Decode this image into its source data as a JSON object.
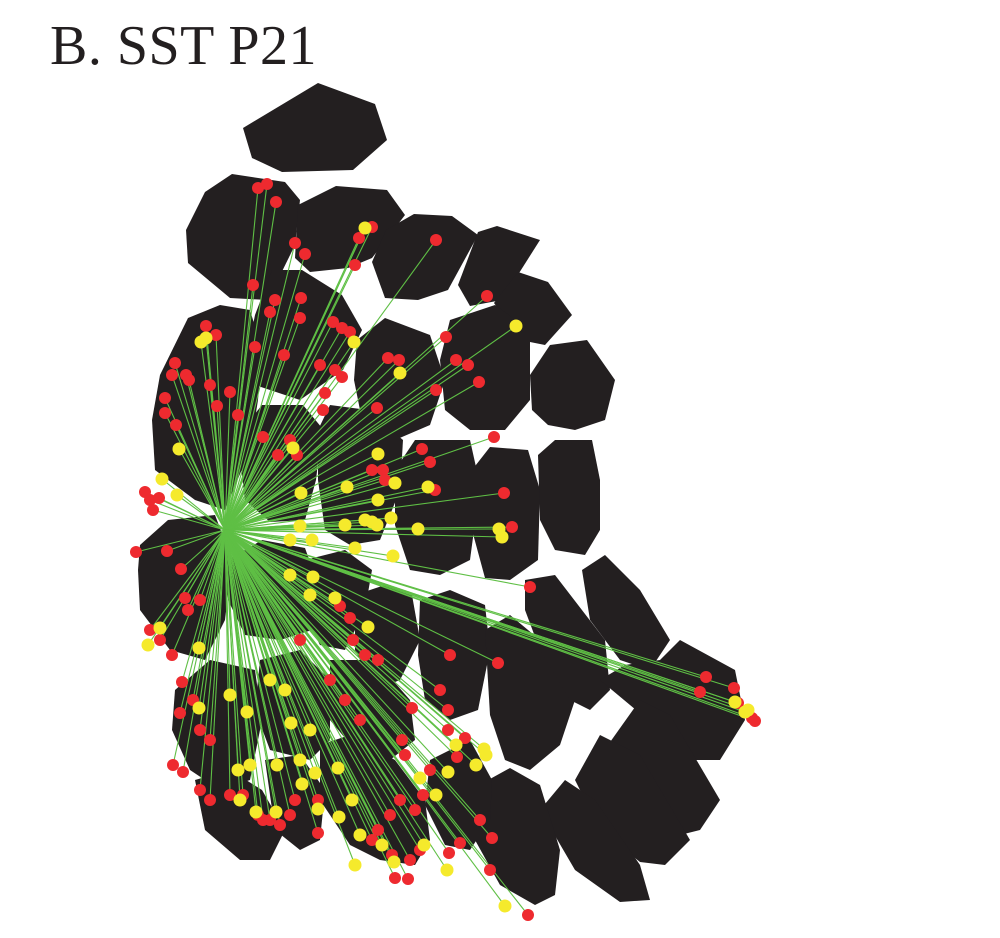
{
  "figure": {
    "panel_title": "B. SST P21"
  },
  "colors": {
    "barrel": "#231f20",
    "projection_line": "#5fbf45",
    "cell_red": "#ee2a2f",
    "cell_yellow": "#f5ea2c",
    "background": "#ffffff"
  }
}
